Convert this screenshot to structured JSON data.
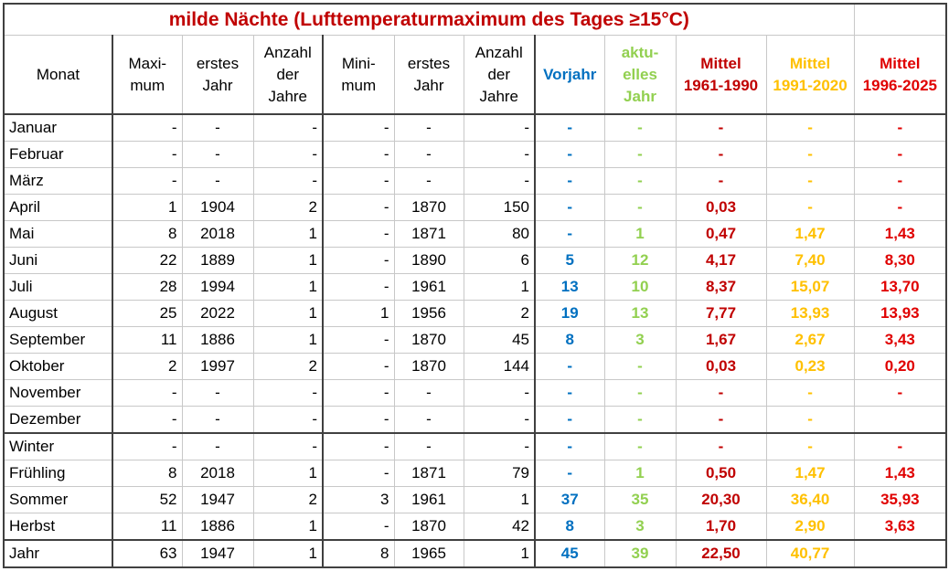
{
  "title": "milde Nächte (Lufttemperaturmaximum des Tages ≥15°C)",
  "headers": {
    "monat": "Monat",
    "maximum": "Maxi-mum",
    "erstes_jahr_max": "erstes Jahr",
    "anzahl_max": "Anzahl der Jahre",
    "minimum": "Mini-mum",
    "erstes_jahr_min": "erstes Jahr",
    "anzahl_min": "Anzahl der Jahre",
    "vorjahr": "Vorjahr",
    "aktuelles": "aktu-elles Jahr",
    "mittel1": "Mittel 1961-1990",
    "mittel2": "Mittel 1991-2020",
    "mittel3": "Mittel 1996-2025"
  },
  "rows": [
    [
      "Januar",
      "-",
      "-",
      "-",
      "-",
      "-",
      "-",
      "-",
      "-",
      "-",
      "-",
      "-"
    ],
    [
      "Februar",
      "-",
      "-",
      "-",
      "-",
      "-",
      "-",
      "-",
      "-",
      "-",
      "-",
      "-"
    ],
    [
      "März",
      "-",
      "-",
      "-",
      "-",
      "-",
      "-",
      "-",
      "-",
      "-",
      "-",
      "-"
    ],
    [
      "April",
      "1",
      "1904",
      "2",
      "-",
      "1870",
      "150",
      "-",
      "-",
      "0,03",
      "-",
      "-"
    ],
    [
      "Mai",
      "8",
      "2018",
      "1",
      "-",
      "1871",
      "80",
      "-",
      "1",
      "0,47",
      "1,47",
      "1,43"
    ],
    [
      "Juni",
      "22",
      "1889",
      "1",
      "-",
      "1890",
      "6",
      "5",
      "12",
      "4,17",
      "7,40",
      "8,30"
    ],
    [
      "Juli",
      "28",
      "1994",
      "1",
      "-",
      "1961",
      "1",
      "13",
      "10",
      "8,37",
      "15,07",
      "13,70"
    ],
    [
      "August",
      "25",
      "2022",
      "1",
      "1",
      "1956",
      "2",
      "19",
      "13",
      "7,77",
      "13,93",
      "13,93"
    ],
    [
      "September",
      "11",
      "1886",
      "1",
      "-",
      "1870",
      "45",
      "8",
      "3",
      "1,67",
      "2,67",
      "3,43"
    ],
    [
      "Oktober",
      "2",
      "1997",
      "2",
      "-",
      "1870",
      "144",
      "-",
      "-",
      "0,03",
      "0,23",
      "0,20"
    ],
    [
      "November",
      "-",
      "-",
      "-",
      "-",
      "-",
      "-",
      "-",
      "-",
      "-",
      "-",
      "-"
    ],
    [
      "Dezember",
      "-",
      "-",
      "-",
      "-",
      "-",
      "-",
      "-",
      "-",
      "-",
      "-",
      ""
    ],
    [
      "Winter",
      "-",
      "-",
      "-",
      "-",
      "-",
      "-",
      "-",
      "-",
      "-",
      "-",
      "-"
    ],
    [
      "Frühling",
      "8",
      "2018",
      "1",
      "-",
      "1871",
      "79",
      "-",
      "1",
      "0,50",
      "1,47",
      "1,43"
    ],
    [
      "Sommer",
      "52",
      "1947",
      "2",
      "3",
      "1961",
      "1",
      "37",
      "35",
      "20,30",
      "36,40",
      "35,93"
    ],
    [
      "Herbst",
      "11",
      "1886",
      "1",
      "-",
      "1870",
      "42",
      "8",
      "3",
      "1,70",
      "2,90",
      "3,63"
    ],
    [
      "Jahr",
      "63",
      "1947",
      "1",
      "8",
      "1965",
      "1",
      "45",
      "39",
      "22,50",
      "40,77",
      ""
    ]
  ]
}
